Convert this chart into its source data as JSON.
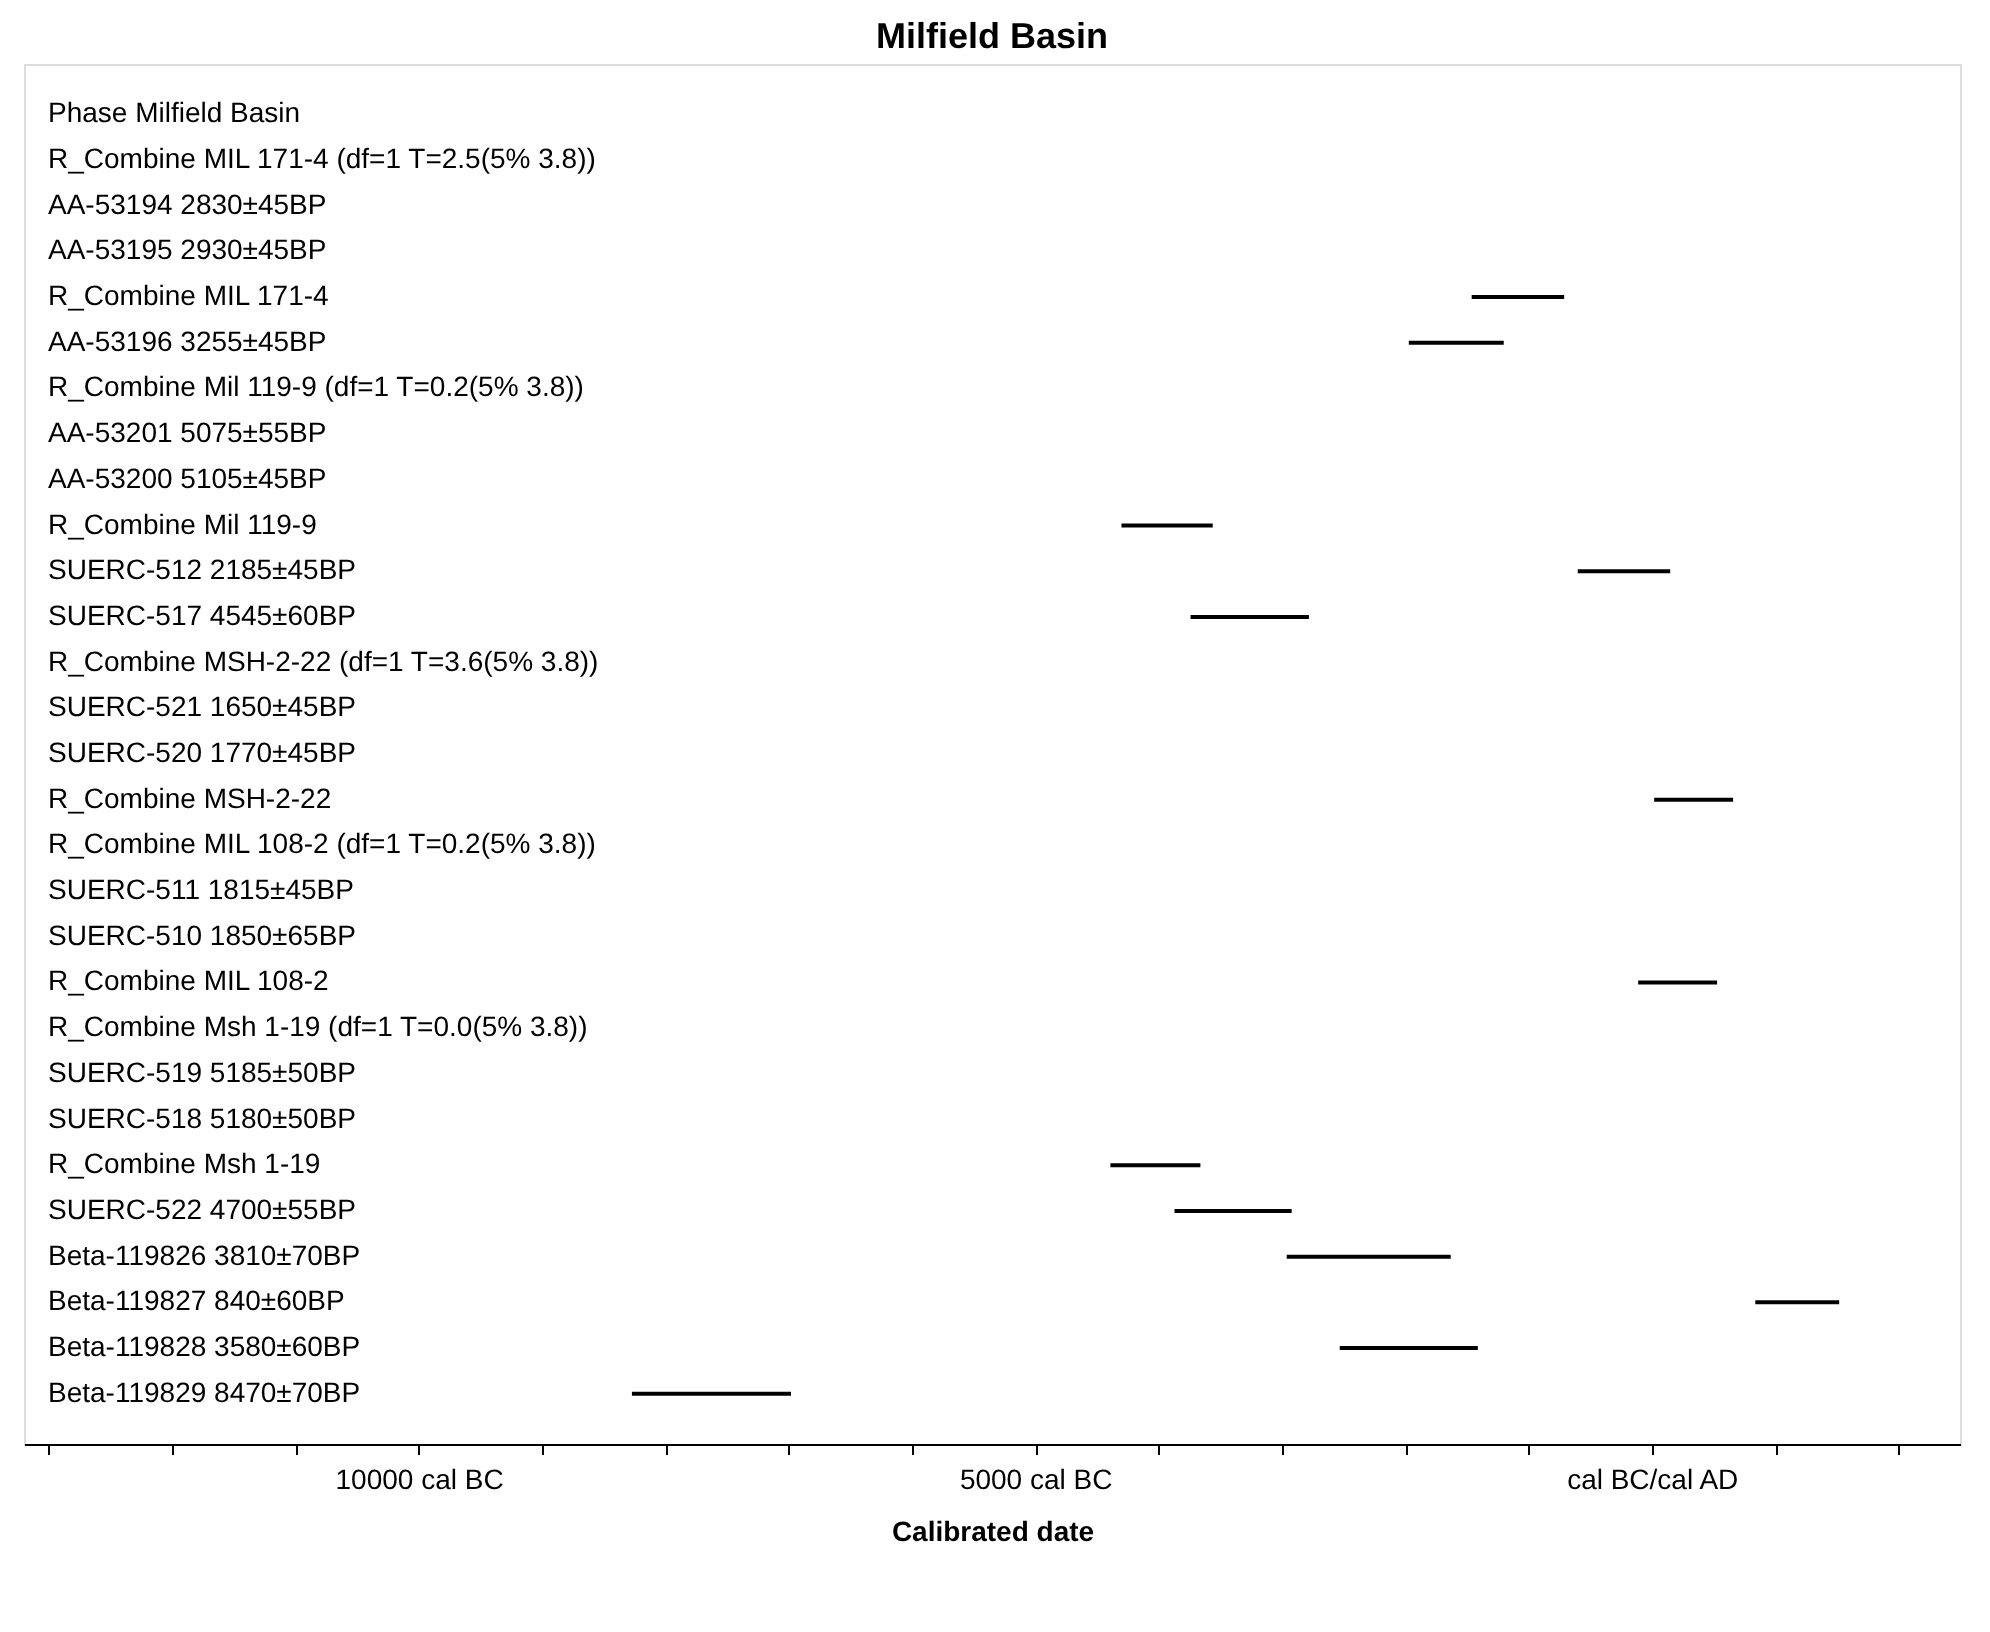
{
  "chart_data": {
    "type": "bar",
    "orientation": "horizontal",
    "title": "Milfield Basin",
    "xlabel": "Calibrated date",
    "categories": [
      "Phase Milfield Basin",
      "R_Combine MIL 171-4 (df=1 T=2.5(5% 3.8))",
      "AA-53194  2830±45BP",
      "AA-53195  2930±45BP",
      "R_Combine MIL 171-4",
      "AA-53196  3255±45BP",
      "R_Combine Mil 119-9 (df=1 T=0.2(5% 3.8))",
      "AA-53201  5075±55BP",
      "AA-53200  5105±45BP",
      "R_Combine Mil 119-9",
      "SUERC-512  2185±45BP",
      "SUERC-517  4545±60BP",
      "R_Combine MSH-2-22 (df=1 T=3.6(5% 3.8))",
      "SUERC-521  1650±45BP",
      "SUERC-520  1770±45BP",
      "R_Combine MSH-2-22",
      "R_Combine MIL 108-2 (df=1 T=0.2(5% 3.8))",
      "SUERC-511  1815±45BP",
      "SUERC-510  1850±65BP",
      "R_Combine MIL 108-2",
      "R_Combine Msh 1-19 (df=1 T=0.0(5% 3.8))",
      "SUERC-519  5185±50BP",
      "SUERC-518  5180±50BP",
      "R_Combine Msh 1-19",
      "SUERC-522  4700±55BP",
      "Beta-119826  3810±70BP",
      "Beta-119827  840±60BP",
      "Beta-119828  3580±60BP",
      "Beta-119829  8470±70BP"
    ],
    "base": [
      null,
      null,
      null,
      null,
      -1460,
      -1970,
      null,
      null,
      null,
      -4300,
      -600,
      -3740,
      null,
      null,
      null,
      20,
      null,
      null,
      null,
      -110,
      null,
      null,
      null,
      -4390,
      -3870,
      -2960,
      840,
      -2530,
      -8270
    ],
    "values": [
      null,
      null,
      null,
      null,
      750,
      770,
      null,
      null,
      null,
      740,
      750,
      960,
      null,
      null,
      null,
      640,
      null,
      null,
      null,
      640,
      null,
      null,
      null,
      730,
      950,
      1330,
      680,
      1120,
      1290
    ],
    "color": "#000000",
    "xlim": [
      -13200,
      2500
    ],
    "xticks": [
      {
        "value": -13000,
        "label": null
      },
      {
        "value": -12000,
        "label": null
      },
      {
        "value": -11000,
        "label": null
      },
      {
        "value": -10000,
        "label": "10000 cal BC"
      },
      {
        "value": -9000,
        "label": null
      },
      {
        "value": -8000,
        "label": null
      },
      {
        "value": -7000,
        "label": null
      },
      {
        "value": -6000,
        "label": null
      },
      {
        "value": -5000,
        "label": "5000 cal BC"
      },
      {
        "value": -4000,
        "label": null
      },
      {
        "value": -3000,
        "label": null
      },
      {
        "value": -2000,
        "label": null
      },
      {
        "value": -1000,
        "label": null
      },
      {
        "value": 0,
        "label": "cal BC/cal AD"
      },
      {
        "value": 1000,
        "label": null
      },
      {
        "value": 2000,
        "label": null
      }
    ],
    "grid": false
  }
}
